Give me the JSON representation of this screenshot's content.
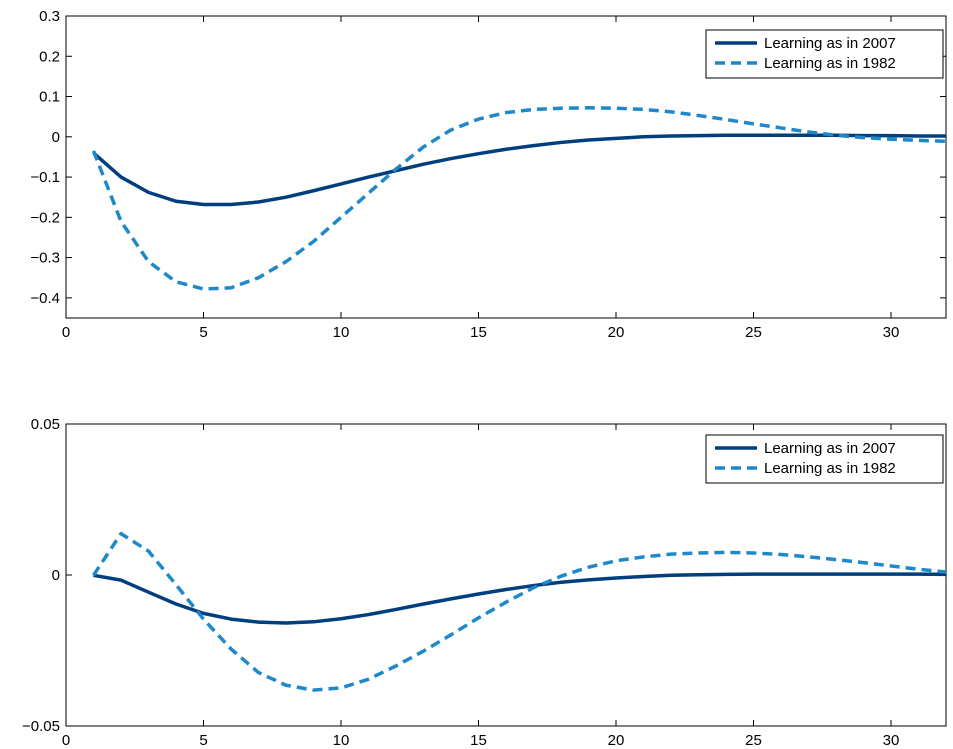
{
  "colors": {
    "series_2007": "#003e7e",
    "series_1982": "#1e88c8",
    "axis": "#000000",
    "background": "#ffffff"
  },
  "chart_data": [
    {
      "type": "line",
      "title": "",
      "xlabel": "",
      "ylabel": "",
      "xlim": [
        0,
        32
      ],
      "ylim": [
        -0.45,
        0.3
      ],
      "x_ticks": [
        0,
        5,
        10,
        15,
        20,
        25,
        30
      ],
      "x_tick_labels": [
        "0",
        "5",
        "10",
        "15",
        "20",
        "25",
        "30"
      ],
      "y_ticks": [
        0.3,
        0.2,
        0.1,
        0,
        -0.1,
        -0.2,
        -0.3,
        -0.4
      ],
      "y_tick_labels": [
        "0.3",
        "0.2",
        "0.1",
        "0",
        "−0.1",
        "−0.2",
        "−0.3",
        "−0.4"
      ],
      "grid": false,
      "legend_position": "top-right",
      "x": [
        1,
        2,
        3,
        4,
        5,
        6,
        7,
        8,
        9,
        10,
        11,
        12,
        13,
        14,
        15,
        16,
        17,
        18,
        19,
        20,
        21,
        22,
        23,
        24,
        25,
        26,
        27,
        28,
        29,
        30,
        31,
        32
      ],
      "series": [
        {
          "name": "Learning as in 2007",
          "style": "solid",
          "values": [
            -0.04,
            -0.1,
            -0.138,
            -0.16,
            -0.168,
            -0.168,
            -0.162,
            -0.15,
            -0.134,
            -0.117,
            -0.1,
            -0.084,
            -0.068,
            -0.054,
            -0.042,
            -0.031,
            -0.022,
            -0.014,
            -0.008,
            -0.004,
            0.0,
            0.002,
            0.003,
            0.004,
            0.004,
            0.004,
            0.004,
            0.004,
            0.003,
            0.003,
            0.002,
            0.002
          ]
        },
        {
          "name": "Learning as in 1982",
          "style": "dashed",
          "values": [
            -0.035,
            -0.21,
            -0.31,
            -0.36,
            -0.378,
            -0.375,
            -0.35,
            -0.31,
            -0.26,
            -0.2,
            -0.14,
            -0.08,
            -0.025,
            0.017,
            0.044,
            0.06,
            0.068,
            0.071,
            0.072,
            0.071,
            0.068,
            0.062,
            0.053,
            0.043,
            0.032,
            0.022,
            0.012,
            0.004,
            -0.002,
            -0.006,
            -0.009,
            -0.011
          ]
        }
      ]
    },
    {
      "type": "line",
      "title": "",
      "xlabel": "",
      "ylabel": "",
      "xlim": [
        0,
        32
      ],
      "ylim": [
        -0.05,
        0.05
      ],
      "x_ticks": [
        0,
        5,
        10,
        15,
        20,
        25,
        30
      ],
      "x_tick_labels": [
        "0",
        "5",
        "10",
        "15",
        "20",
        "25",
        "30"
      ],
      "y_ticks": [
        0.05,
        0,
        -0.05
      ],
      "y_tick_labels": [
        "0.05",
        "0",
        "−0.05"
      ],
      "grid": false,
      "legend_position": "top-right",
      "x": [
        1,
        2,
        3,
        4,
        5,
        6,
        7,
        8,
        9,
        10,
        11,
        12,
        13,
        14,
        15,
        16,
        17,
        18,
        19,
        20,
        21,
        22,
        23,
        24,
        25,
        26,
        27,
        28,
        29,
        30,
        31,
        32
      ],
      "series": [
        {
          "name": "Learning as in 2007",
          "style": "solid",
          "values": [
            -0.0001,
            -0.0017,
            -0.0057,
            -0.0096,
            -0.0127,
            -0.0146,
            -0.0156,
            -0.0159,
            -0.0155,
            -0.0145,
            -0.0131,
            -0.0114,
            -0.0096,
            -0.0079,
            -0.0063,
            -0.0048,
            -0.0035,
            -0.0024,
            -0.0016,
            -0.001,
            -0.0005,
            -0.0001,
            0.0001,
            0.0002,
            0.0003,
            0.0003,
            0.0003,
            0.0003,
            0.0003,
            0.0003,
            0.0003,
            0.0002
          ]
        },
        {
          "name": "Learning as in 1982",
          "style": "dashed",
          "values": [
            -0.0001,
            0.0137,
            0.0079,
            -0.0032,
            -0.0146,
            -0.0245,
            -0.0323,
            -0.0365,
            -0.0381,
            -0.0374,
            -0.0345,
            -0.0301,
            -0.0252,
            -0.0198,
            -0.0142,
            -0.009,
            -0.0042,
            -0.0004,
            0.0026,
            0.0047,
            0.006,
            0.0069,
            0.0073,
            0.0075,
            0.0073,
            0.0068,
            0.006,
            0.0051,
            0.0041,
            0.003,
            0.0019,
            0.001
          ]
        }
      ]
    }
  ]
}
